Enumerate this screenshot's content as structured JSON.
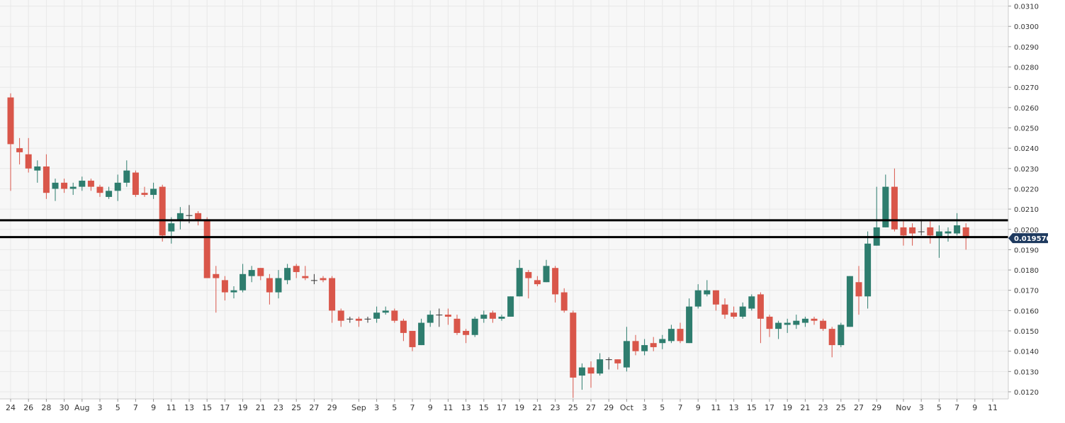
{
  "chart_data": {
    "type": "candlestick",
    "colors": {
      "background": "#f7f7f7",
      "grid": "#e8e8e8",
      "up": "#2e7d6e",
      "down": "#d9564a",
      "neutral": "#333333",
      "axis_text": "#333333",
      "price_tag_bg": "#1e3a5f",
      "price_tag_text": "#ffffff",
      "level_lines": "#000000"
    },
    "y_axis": {
      "position": "right",
      "range": [
        0.01165,
        0.0313
      ],
      "tick_labels": [
        "0.0120",
        "0.0130",
        "0.0140",
        "0.0150",
        "0.0160",
        "0.0170",
        "0.0180",
        "0.0190",
        "0.0200",
        "0.0210",
        "0.0220",
        "0.0230",
        "0.0240",
        "0.0250",
        "0.0260",
        "0.0270",
        "0.0280",
        "0.0290",
        "0.0300",
        "0.0310"
      ]
    },
    "x_axis": {
      "tick_labels": [
        {
          "label": "24",
          "day": 0
        },
        {
          "label": "26",
          "day": 2
        },
        {
          "label": "28",
          "day": 4
        },
        {
          "label": "30",
          "day": 6
        },
        {
          "label": "Aug",
          "day": 8
        },
        {
          "label": "3",
          "day": 10
        },
        {
          "label": "5",
          "day": 12
        },
        {
          "label": "7",
          "day": 14
        },
        {
          "label": "9",
          "day": 16
        },
        {
          "label": "11",
          "day": 18
        },
        {
          "label": "13",
          "day": 20
        },
        {
          "label": "15",
          "day": 22
        },
        {
          "label": "17",
          "day": 24
        },
        {
          "label": "19",
          "day": 26
        },
        {
          "label": "21",
          "day": 28
        },
        {
          "label": "23",
          "day": 30
        },
        {
          "label": "25",
          "day": 32
        },
        {
          "label": "27",
          "day": 34
        },
        {
          "label": "29",
          "day": 36
        },
        {
          "label": "Sep",
          "day": 39
        },
        {
          "label": "3",
          "day": 41
        },
        {
          "label": "5",
          "day": 43
        },
        {
          "label": "7",
          "day": 45
        },
        {
          "label": "9",
          "day": 47
        },
        {
          "label": "11",
          "day": 49
        },
        {
          "label": "13",
          "day": 51
        },
        {
          "label": "15",
          "day": 53
        },
        {
          "label": "17",
          "day": 55
        },
        {
          "label": "19",
          "day": 57
        },
        {
          "label": "21",
          "day": 59
        },
        {
          "label": "23",
          "day": 61
        },
        {
          "label": "25",
          "day": 63
        },
        {
          "label": "27",
          "day": 65
        },
        {
          "label": "29",
          "day": 67
        },
        {
          "label": "Oct",
          "day": 69
        },
        {
          "label": "3",
          "day": 71
        },
        {
          "label": "5",
          "day": 73
        },
        {
          "label": "7",
          "day": 75
        },
        {
          "label": "9",
          "day": 77
        },
        {
          "label": "11",
          "day": 79
        },
        {
          "label": "13",
          "day": 81
        },
        {
          "label": "15",
          "day": 83
        },
        {
          "label": "17",
          "day": 85
        },
        {
          "label": "19",
          "day": 87
        },
        {
          "label": "21",
          "day": 89
        },
        {
          "label": "23",
          "day": 91
        },
        {
          "label": "25",
          "day": 93
        },
        {
          "label": "27",
          "day": 95
        },
        {
          "label": "29",
          "day": 97
        },
        {
          "label": "Nov",
          "day": 100
        },
        {
          "label": "3",
          "day": 102
        },
        {
          "label": "5",
          "day": 104
        },
        {
          "label": "7",
          "day": 106
        },
        {
          "label": "9",
          "day": 108
        },
        {
          "label": "11",
          "day": 110
        }
      ]
    },
    "current_price": 0.01957,
    "current_price_label": "0.019570",
    "horizontal_levels": [
      0.02045,
      0.01962
    ],
    "candles": [
      {
        "d": 0,
        "o": 0.0265,
        "h": 0.0267,
        "l": 0.0219,
        "c": 0.0242
      },
      {
        "d": 1,
        "o": 0.024,
        "h": 0.0245,
        "l": 0.0232,
        "c": 0.0238
      },
      {
        "d": 2,
        "o": 0.0237,
        "h": 0.0245,
        "l": 0.0228,
        "c": 0.023
      },
      {
        "d": 3,
        "o": 0.0229,
        "h": 0.0234,
        "l": 0.0223,
        "c": 0.0231
      },
      {
        "d": 4,
        "o": 0.0231,
        "h": 0.0237,
        "l": 0.0215,
        "c": 0.0218
      },
      {
        "d": 5,
        "o": 0.022,
        "h": 0.0225,
        "l": 0.0214,
        "c": 0.0223
      },
      {
        "d": 6,
        "o": 0.0223,
        "h": 0.0225,
        "l": 0.0218,
        "c": 0.022
      },
      {
        "d": 7,
        "o": 0.022,
        "h": 0.0223,
        "l": 0.0217,
        "c": 0.0221
      },
      {
        "d": 8,
        "o": 0.0221,
        "h": 0.0226,
        "l": 0.0219,
        "c": 0.0224
      },
      {
        "d": 9,
        "o": 0.0224,
        "h": 0.0225,
        "l": 0.0219,
        "c": 0.0221
      },
      {
        "d": 10,
        "o": 0.0221,
        "h": 0.0222,
        "l": 0.0216,
        "c": 0.0218
      },
      {
        "d": 11,
        "o": 0.0216,
        "h": 0.0221,
        "l": 0.0215,
        "c": 0.0219
      },
      {
        "d": 12,
        "o": 0.0219,
        "h": 0.0227,
        "l": 0.0214,
        "c": 0.0223
      },
      {
        "d": 13,
        "o": 0.0223,
        "h": 0.0234,
        "l": 0.0221,
        "c": 0.0229
      },
      {
        "d": 14,
        "o": 0.0228,
        "h": 0.0229,
        "l": 0.0216,
        "c": 0.0217
      },
      {
        "d": 15,
        "o": 0.0218,
        "h": 0.0221,
        "l": 0.0216,
        "c": 0.0217
      },
      {
        "d": 16,
        "o": 0.0217,
        "h": 0.0223,
        "l": 0.0215,
        "c": 0.022
      },
      {
        "d": 17,
        "o": 0.0221,
        "h": 0.0222,
        "l": 0.0194,
        "c": 0.0197
      },
      {
        "d": 18,
        "o": 0.0199,
        "h": 0.0206,
        "l": 0.0193,
        "c": 0.0203
      },
      {
        "d": 19,
        "o": 0.0205,
        "h": 0.0211,
        "l": 0.02,
        "c": 0.0208
      },
      {
        "d": 20,
        "o": 0.0207,
        "h": 0.0212,
        "l": 0.0203,
        "c": 0.0207
      },
      {
        "d": 21,
        "o": 0.0208,
        "h": 0.0209,
        "l": 0.0202,
        "c": 0.0205
      },
      {
        "d": 22,
        "o": 0.0205,
        "h": 0.0206,
        "l": 0.0176,
        "c": 0.0176
      },
      {
        "d": 23,
        "o": 0.0178,
        "h": 0.0182,
        "l": 0.0159,
        "c": 0.0176
      },
      {
        "d": 24,
        "o": 0.0175,
        "h": 0.0177,
        "l": 0.0165,
        "c": 0.0169
      },
      {
        "d": 25,
        "o": 0.0169,
        "h": 0.0172,
        "l": 0.0166,
        "c": 0.017
      },
      {
        "d": 26,
        "o": 0.017,
        "h": 0.0183,
        "l": 0.0169,
        "c": 0.0178
      },
      {
        "d": 27,
        "o": 0.0177,
        "h": 0.0182,
        "l": 0.0174,
        "c": 0.018
      },
      {
        "d": 28,
        "o": 0.0181,
        "h": 0.0181,
        "l": 0.0175,
        "c": 0.0177
      },
      {
        "d": 29,
        "o": 0.0176,
        "h": 0.0178,
        "l": 0.0163,
        "c": 0.0169
      },
      {
        "d": 30,
        "o": 0.0169,
        "h": 0.018,
        "l": 0.0166,
        "c": 0.0176
      },
      {
        "d": 31,
        "o": 0.0175,
        "h": 0.0183,
        "l": 0.0173,
        "c": 0.0181
      },
      {
        "d": 32,
        "o": 0.0182,
        "h": 0.0183,
        "l": 0.0176,
        "c": 0.0179
      },
      {
        "d": 33,
        "o": 0.0177,
        "h": 0.0182,
        "l": 0.0175,
        "c": 0.0176
      },
      {
        "d": 34,
        "o": 0.0175,
        "h": 0.0178,
        "l": 0.0173,
        "c": 0.0175
      },
      {
        "d": 35,
        "o": 0.0176,
        "h": 0.0177,
        "l": 0.0174,
        "c": 0.0175
      },
      {
        "d": 36,
        "o": 0.0176,
        "h": 0.0177,
        "l": 0.0154,
        "c": 0.016
      },
      {
        "d": 37,
        "o": 0.016,
        "h": 0.0161,
        "l": 0.0152,
        "c": 0.0155
      },
      {
        "d": 38,
        "o": 0.0156,
        "h": 0.0157,
        "l": 0.0154,
        "c": 0.0156
      },
      {
        "d": 39,
        "o": 0.0156,
        "h": 0.0157,
        "l": 0.0152,
        "c": 0.0155
      },
      {
        "d": 40,
        "o": 0.0156,
        "h": 0.0157,
        "l": 0.0154,
        "c": 0.0156
      },
      {
        "d": 41,
        "o": 0.0156,
        "h": 0.0162,
        "l": 0.0154,
        "c": 0.0159
      },
      {
        "d": 42,
        "o": 0.0159,
        "h": 0.0162,
        "l": 0.0158,
        "c": 0.016
      },
      {
        "d": 43,
        "o": 0.016,
        "h": 0.0161,
        "l": 0.0154,
        "c": 0.0155
      },
      {
        "d": 44,
        "o": 0.0155,
        "h": 0.0156,
        "l": 0.0145,
        "c": 0.0149
      },
      {
        "d": 45,
        "o": 0.015,
        "h": 0.015,
        "l": 0.014,
        "c": 0.0142
      },
      {
        "d": 46,
        "o": 0.0143,
        "h": 0.0156,
        "l": 0.0143,
        "c": 0.0154
      },
      {
        "d": 47,
        "o": 0.0154,
        "h": 0.016,
        "l": 0.0152,
        "c": 0.0158
      },
      {
        "d": 48,
        "o": 0.0158,
        "h": 0.0161,
        "l": 0.0152,
        "c": 0.0158
      },
      {
        "d": 49,
        "o": 0.0158,
        "h": 0.0161,
        "l": 0.0153,
        "c": 0.0157
      },
      {
        "d": 50,
        "o": 0.0156,
        "h": 0.0158,
        "l": 0.0148,
        "c": 0.0149
      },
      {
        "d": 51,
        "o": 0.015,
        "h": 0.0151,
        "l": 0.0144,
        "c": 0.0148
      },
      {
        "d": 52,
        "o": 0.0148,
        "h": 0.0157,
        "l": 0.0147,
        "c": 0.0156
      },
      {
        "d": 53,
        "o": 0.0156,
        "h": 0.016,
        "l": 0.0154,
        "c": 0.0158
      },
      {
        "d": 54,
        "o": 0.0159,
        "h": 0.016,
        "l": 0.0154,
        "c": 0.0156
      },
      {
        "d": 55,
        "o": 0.0156,
        "h": 0.0158,
        "l": 0.0155,
        "c": 0.0157
      },
      {
        "d": 56,
        "o": 0.0157,
        "h": 0.0167,
        "l": 0.0157,
        "c": 0.0167
      },
      {
        "d": 57,
        "o": 0.0167,
        "h": 0.0185,
        "l": 0.0167,
        "c": 0.0181
      },
      {
        "d": 58,
        "o": 0.0179,
        "h": 0.018,
        "l": 0.0166,
        "c": 0.0176
      },
      {
        "d": 59,
        "o": 0.0175,
        "h": 0.0177,
        "l": 0.0172,
        "c": 0.0173
      },
      {
        "d": 60,
        "o": 0.0174,
        "h": 0.0185,
        "l": 0.0174,
        "c": 0.0182
      },
      {
        "d": 61,
        "o": 0.0181,
        "h": 0.0182,
        "l": 0.0164,
        "c": 0.0168
      },
      {
        "d": 62,
        "o": 0.0169,
        "h": 0.0171,
        "l": 0.0159,
        "c": 0.016
      },
      {
        "d": 63,
        "o": 0.0159,
        "h": 0.016,
        "l": 0.0117,
        "c": 0.0127
      },
      {
        "d": 64,
        "o": 0.0128,
        "h": 0.0134,
        "l": 0.0121,
        "c": 0.0132
      },
      {
        "d": 65,
        "o": 0.0132,
        "h": 0.0135,
        "l": 0.0122,
        "c": 0.0129
      },
      {
        "d": 66,
        "o": 0.0129,
        "h": 0.0139,
        "l": 0.0128,
        "c": 0.0136
      },
      {
        "d": 67,
        "o": 0.0136,
        "h": 0.0137,
        "l": 0.0131,
        "c": 0.0136
      },
      {
        "d": 68,
        "o": 0.0136,
        "h": 0.0136,
        "l": 0.0131,
        "c": 0.0134
      },
      {
        "d": 69,
        "o": 0.0132,
        "h": 0.0152,
        "l": 0.013,
        "c": 0.0145
      },
      {
        "d": 70,
        "o": 0.0145,
        "h": 0.0148,
        "l": 0.0138,
        "c": 0.014
      },
      {
        "d": 71,
        "o": 0.014,
        "h": 0.0146,
        "l": 0.0138,
        "c": 0.0143
      },
      {
        "d": 72,
        "o": 0.0144,
        "h": 0.0147,
        "l": 0.014,
        "c": 0.0142
      },
      {
        "d": 73,
        "o": 0.0144,
        "h": 0.0148,
        "l": 0.0141,
        "c": 0.0146
      },
      {
        "d": 74,
        "o": 0.0145,
        "h": 0.0153,
        "l": 0.0144,
        "c": 0.0151
      },
      {
        "d": 75,
        "o": 0.0151,
        "h": 0.0154,
        "l": 0.0144,
        "c": 0.0145
      },
      {
        "d": 76,
        "o": 0.0144,
        "h": 0.0166,
        "l": 0.0144,
        "c": 0.0162
      },
      {
        "d": 77,
        "o": 0.0162,
        "h": 0.0173,
        "l": 0.0161,
        "c": 0.017
      },
      {
        "d": 78,
        "o": 0.0168,
        "h": 0.0175,
        "l": 0.0167,
        "c": 0.017
      },
      {
        "d": 79,
        "o": 0.017,
        "h": 0.017,
        "l": 0.016,
        "c": 0.0163
      },
      {
        "d": 80,
        "o": 0.0163,
        "h": 0.0166,
        "l": 0.0156,
        "c": 0.0158
      },
      {
        "d": 81,
        "o": 0.0159,
        "h": 0.0162,
        "l": 0.0156,
        "c": 0.0157
      },
      {
        "d": 82,
        "o": 0.0157,
        "h": 0.0164,
        "l": 0.0156,
        "c": 0.0162
      },
      {
        "d": 83,
        "o": 0.0161,
        "h": 0.0168,
        "l": 0.016,
        "c": 0.0167
      },
      {
        "d": 84,
        "o": 0.0168,
        "h": 0.0169,
        "l": 0.0144,
        "c": 0.0156
      },
      {
        "d": 85,
        "o": 0.0157,
        "h": 0.0158,
        "l": 0.0147,
        "c": 0.0151
      },
      {
        "d": 86,
        "o": 0.0151,
        "h": 0.0155,
        "l": 0.0146,
        "c": 0.0154
      },
      {
        "d": 87,
        "o": 0.0153,
        "h": 0.0156,
        "l": 0.0149,
        "c": 0.0154
      },
      {
        "d": 88,
        "o": 0.0153,
        "h": 0.0158,
        "l": 0.0151,
        "c": 0.0155
      },
      {
        "d": 89,
        "o": 0.0154,
        "h": 0.0157,
        "l": 0.0152,
        "c": 0.0156
      },
      {
        "d": 90,
        "o": 0.0156,
        "h": 0.0157,
        "l": 0.0153,
        "c": 0.0155
      },
      {
        "d": 91,
        "o": 0.0155,
        "h": 0.0156,
        "l": 0.015,
        "c": 0.0151
      },
      {
        "d": 92,
        "o": 0.0151,
        "h": 0.0152,
        "l": 0.0137,
        "c": 0.0143
      },
      {
        "d": 93,
        "o": 0.0143,
        "h": 0.0154,
        "l": 0.0142,
        "c": 0.0153
      },
      {
        "d": 94,
        "o": 0.0152,
        "h": 0.0177,
        "l": 0.0152,
        "c": 0.0177
      },
      {
        "d": 95,
        "o": 0.0174,
        "h": 0.0182,
        "l": 0.0158,
        "c": 0.0167
      },
      {
        "d": 96,
        "o": 0.0167,
        "h": 0.0199,
        "l": 0.0161,
        "c": 0.0193
      },
      {
        "d": 97,
        "o": 0.0192,
        "h": 0.0221,
        "l": 0.0192,
        "c": 0.0201
      },
      {
        "d": 98,
        "o": 0.0201,
        "h": 0.0227,
        "l": 0.0201,
        "c": 0.0221
      },
      {
        "d": 99,
        "o": 0.0221,
        "h": 0.023,
        "l": 0.0199,
        "c": 0.02
      },
      {
        "d": 100,
        "o": 0.0201,
        "h": 0.0204,
        "l": 0.0192,
        "c": 0.0197
      },
      {
        "d": 101,
        "o": 0.0201,
        "h": 0.0203,
        "l": 0.0192,
        "c": 0.0198
      },
      {
        "d": 102,
        "o": 0.0199,
        "h": 0.0205,
        "l": 0.0197,
        "c": 0.0199
      },
      {
        "d": 103,
        "o": 0.0201,
        "h": 0.0204,
        "l": 0.0193,
        "c": 0.0197
      },
      {
        "d": 104,
        "o": 0.0196,
        "h": 0.0202,
        "l": 0.0186,
        "c": 0.0199
      },
      {
        "d": 105,
        "o": 0.0198,
        "h": 0.0201,
        "l": 0.0194,
        "c": 0.0199
      },
      {
        "d": 106,
        "o": 0.0198,
        "h": 0.0208,
        "l": 0.0197,
        "c": 0.0202
      },
      {
        "d": 107,
        "o": 0.0201,
        "h": 0.0203,
        "l": 0.019,
        "c": 0.01957
      }
    ]
  }
}
